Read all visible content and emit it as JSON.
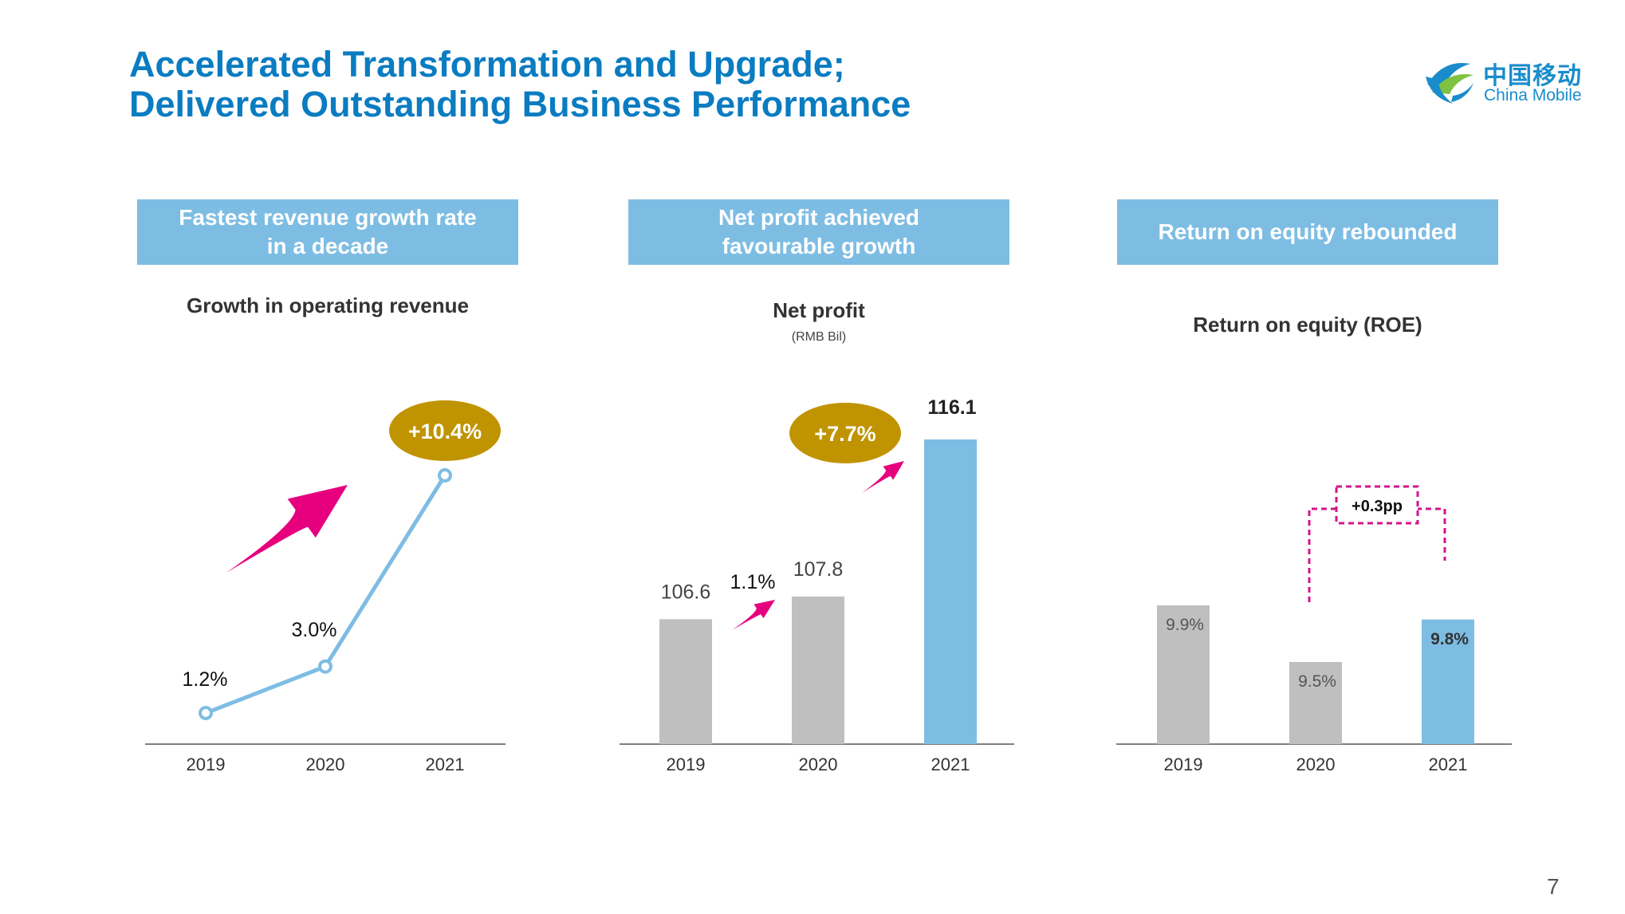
{
  "slide": {
    "title_line1": "Accelerated Transformation and Upgrade;",
    "title_line2": "Delivered Outstanding Business Performance",
    "page_number": "7"
  },
  "logo": {
    "name_cn": "中国移动",
    "name_en": "China Mobile",
    "icon": "china-mobile-logo-icon"
  },
  "colors": {
    "title": "#0a7cc1",
    "header_bg": "#7ebde3",
    "bar_grey": "#bfbfbf",
    "bar_highlight": "#7ebde3",
    "line": "#7ebde3",
    "badge": "#c09300",
    "arrow": "#e6007e",
    "bracket": "#d4148a"
  },
  "panels": [
    {
      "header": "Fastest revenue growth rate\nin a decade",
      "subtitle": "Growth in operating revenue"
    },
    {
      "header": "Net profit achieved\nfavourable growth",
      "subtitle": "Net profit",
      "unit": "(RMB Bil)"
    },
    {
      "header": "Return on equity rebounded",
      "subtitle": "Return on equity (ROE)"
    }
  ],
  "chart_data": [
    {
      "type": "line",
      "categories": [
        "2019",
        "2020",
        "2021"
      ],
      "values": [
        1.2,
        3.0,
        10.4
      ],
      "data_labels": [
        "1.2%",
        "3.0%",
        "+10.4%"
      ],
      "highlight_badge": "+10.4%"
    },
    {
      "type": "bar",
      "categories": [
        "2019",
        "2020",
        "2021"
      ],
      "values": [
        106.6,
        107.8,
        116.1
      ],
      "data_labels": [
        "106.6",
        "107.8",
        "116.1"
      ],
      "growth_labels": [
        "1.1%",
        "+7.7%"
      ]
    },
    {
      "type": "bar",
      "categories": [
        "2019",
        "2020",
        "2021"
      ],
      "values": [
        9.9,
        9.5,
        9.8
      ],
      "data_labels": [
        "9.9%",
        "9.5%",
        "9.8%"
      ],
      "change_label": "+0.3pp"
    }
  ]
}
